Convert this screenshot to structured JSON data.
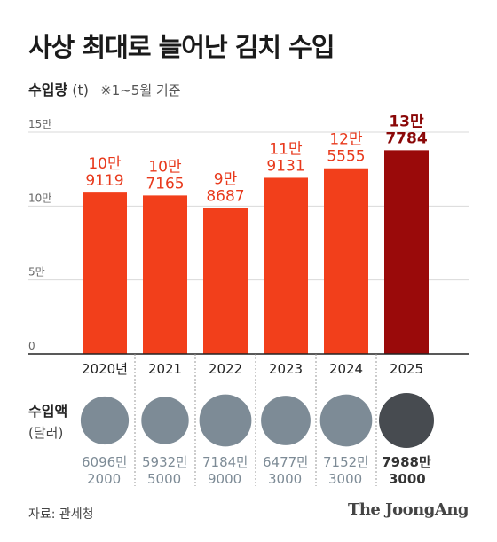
{
  "header": {
    "title": "사상 최대로 늘어난 김치 수입",
    "subtitle_label": "수입량",
    "subtitle_unit": "(t)",
    "subtitle_note": "※1~5월 기준"
  },
  "chart_data": {
    "type": "bar",
    "categories": [
      "2020년",
      "2021",
      "2022",
      "2023",
      "2024",
      "2025"
    ],
    "values": [
      109119,
      107165,
      98687,
      119131,
      125555,
      137784
    ],
    "value_labels": [
      [
        "10만",
        "9119"
      ],
      [
        "10만",
        "7165"
      ],
      [
        "9만",
        "8687"
      ],
      [
        "11만",
        "9131"
      ],
      [
        "12만",
        "5555"
      ],
      [
        "13만",
        "7784"
      ]
    ],
    "ylim": [
      0,
      150000
    ],
    "yticks": [
      0,
      50000,
      100000,
      150000
    ],
    "ytick_labels": [
      "0",
      "5만",
      "10만",
      "15만"
    ],
    "grid": true,
    "colors": {
      "bar": "#f23f1b",
      "bar_highlight": "#9a0a0a",
      "label": "#e8391c",
      "label_highlight": "#8a0707",
      "grid": "#d9d9d9",
      "axis": "#222222",
      "divider": "#999999"
    },
    "import_value": {
      "label_line1": "수입액",
      "label_line2": "(달러)",
      "values": [
        60962000,
        59325000,
        71849000,
        64773000,
        71523000,
        79883000
      ],
      "value_labels": [
        [
          "6096만",
          "2000"
        ],
        [
          "5932만",
          "5000"
        ],
        [
          "7184만",
          "9000"
        ],
        [
          "6477만",
          "3000"
        ],
        [
          "7152만",
          "3000"
        ],
        [
          "7988만",
          "3000"
        ]
      ],
      "circle_color": "#7d8b96",
      "circle_highlight": "#474b50",
      "text_color": "#7d8b96",
      "text_highlight": "#333333"
    }
  },
  "footer": {
    "source": "자료: 관세청",
    "brand": "The JoongAng"
  }
}
